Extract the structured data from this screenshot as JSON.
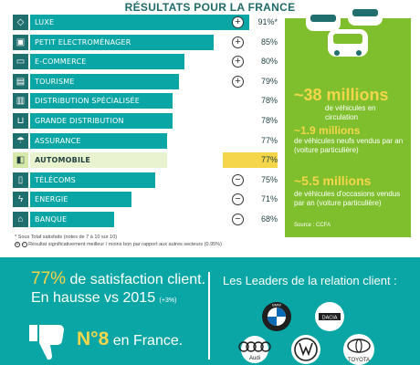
{
  "page_title": "RÉSULTATS POUR LA FRANCE",
  "sectors": [
    {
      "label": "LUXE",
      "pct": "91%*",
      "sym": "+",
      "icon": "diamond-icon",
      "glyph": "◇",
      "highlight": false
    },
    {
      "label": "PETIT ELECTROMÉNAGER",
      "pct": "85%",
      "sym": "+",
      "icon": "appliance-icon",
      "glyph": "▣",
      "highlight": false
    },
    {
      "label": "E-COMMERCE",
      "pct": "80%",
      "sym": "+",
      "icon": "laptop-icon",
      "glyph": "▭",
      "highlight": false
    },
    {
      "label": "TOURISME",
      "pct": "79%",
      "sym": "+",
      "icon": "suitcase-icon",
      "glyph": "▤",
      "highlight": false
    },
    {
      "label": "DISTRIBUTION SPÉCIALISÉE",
      "pct": "78%",
      "sym": "",
      "icon": "shop-icon",
      "glyph": "▥",
      "highlight": false
    },
    {
      "label": "GRANDE DISTRIBUTION",
      "pct": "78%",
      "sym": "",
      "icon": "cart-icon",
      "glyph": "⊔",
      "highlight": false
    },
    {
      "label": "ASSURANCE",
      "pct": "77%",
      "sym": "",
      "icon": "umbrella-icon",
      "glyph": "☂",
      "highlight": false
    },
    {
      "label": "AUTOMOBILE",
      "pct": "77%",
      "sym": "",
      "icon": "car-icon",
      "glyph": "◧",
      "highlight": true
    },
    {
      "label": "TÉLÉCOMS",
      "pct": "75%",
      "sym": "−",
      "icon": "phone-icon",
      "glyph": "▯",
      "highlight": false
    },
    {
      "label": "ENERGIE",
      "pct": "71%",
      "sym": "−",
      "icon": "bolt-icon",
      "glyph": "ϟ",
      "highlight": false
    },
    {
      "label": "BANQUE",
      "pct": "68%",
      "sym": "−",
      "icon": "bank-icon",
      "glyph": "⌂",
      "highlight": false
    }
  ],
  "notes": {
    "line1": "* Sous Total satisfaits (notes de 7 à 10 sur 10)",
    "line2": "Résultat significativement meilleur / moins bon par rapport aux autres secteurs (0.95%)"
  },
  "stats": [
    {
      "big": "~38 millions",
      "text": "de véhicules en circulation"
    },
    {
      "big": "~1.9 millions",
      "text": "de véhicules neufs vendus par an (voiture particulière)"
    },
    {
      "big": "~5.5 millions",
      "text": "de véhicules d'occasions vendus par an (voiture particulière)"
    }
  ],
  "source": "Source : CCFA",
  "satisfaction": {
    "pct": "77%",
    "line1": "de satisfaction client.",
    "line2": "En hausse vs 2015",
    "delta": "(+3%)",
    "rank": "N°8",
    "rank_suffix": "en France."
  },
  "leaders": {
    "title": "Les Leaders de la relation client :",
    "brands": [
      "BMW",
      "DACIA",
      "Audi",
      "VW",
      "TOYOTA"
    ]
  },
  "colors": {
    "teal": "#0aa5a5",
    "dark_teal": "#1f6f6f",
    "green": "#7fbf2d",
    "yellow": "#f5d64a"
  }
}
